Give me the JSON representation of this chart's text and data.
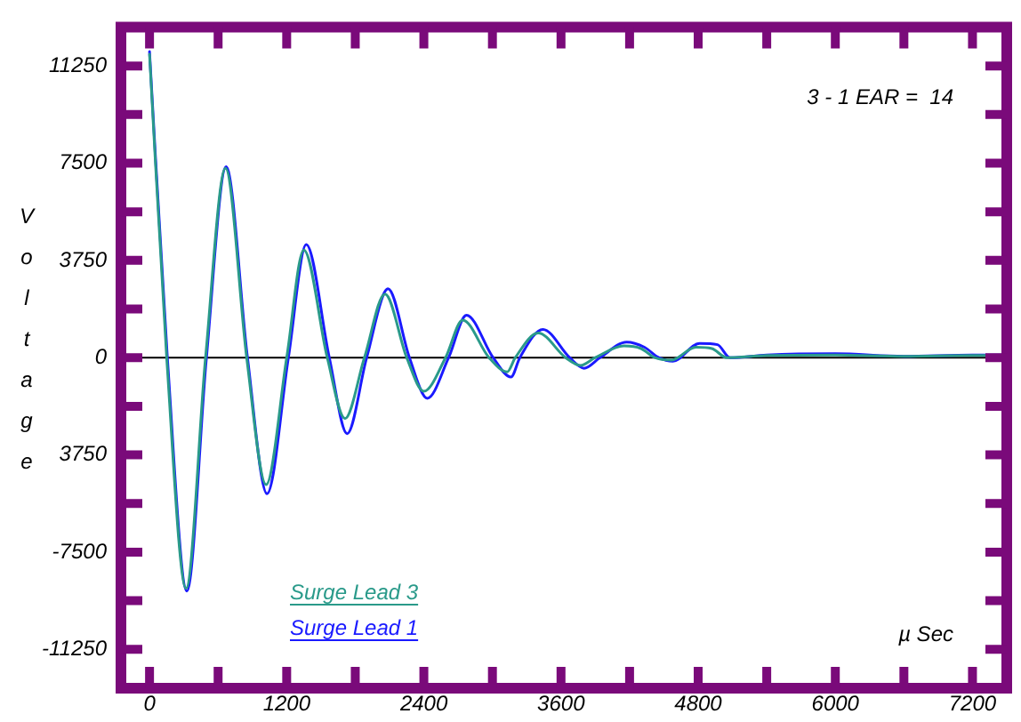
{
  "chart_data": {
    "type": "line",
    "ylabel": "Voltage",
    "annotations": [
      "3 - 1 EAR =  14",
      "µ Sec"
    ],
    "xlim": [
      -250,
      7500
    ],
    "ylim": [
      -12750,
      12750
    ],
    "xticks": [
      0,
      {
        "value": 600,
        "label": null
      },
      1200,
      {
        "value": 1800,
        "label": null
      },
      2400,
      {
        "value": 3000,
        "label": null
      },
      3600,
      {
        "value": 4200,
        "label": null
      },
      4800,
      {
        "value": 5400,
        "label": null
      },
      6000,
      {
        "value": 6600,
        "label": null
      },
      7200
    ],
    "yticks": [
      {
        "value": -11250,
        "label": "-11250"
      },
      {
        "value": -9375,
        "label": null
      },
      {
        "value": -7500,
        "label": "-7500"
      },
      {
        "value": -5625,
        "label": null
      },
      {
        "value": -3750,
        "label": "3750"
      },
      {
        "value": -1875,
        "label": null
      },
      0,
      {
        "value": 1875,
        "label": null
      },
      3750,
      {
        "value": 5625,
        "label": null
      },
      7500,
      {
        "value": 9375,
        "label": null
      },
      11250
    ],
    "ref_lines": [
      {
        "axis": "y",
        "value": 0,
        "color": "#000000"
      }
    ],
    "legend": "bottom left",
    "grid": false,
    "marker": "none",
    "line_style": "solid",
    "series": [
      {
        "name": "Surge Lead 3",
        "color": "#2a9a8a",
        "x": [
          0,
          150,
          320,
          490,
          665,
          850,
          1020,
          1200,
          1350,
          1555,
          1710,
          1880,
          2060,
          2250,
          2400,
          2590,
          2740,
          2970,
          3130,
          3200,
          3400,
          3640,
          3770,
          3900,
          4150,
          4300,
          4420,
          4560,
          4780,
          4920,
          5050,
          5400,
          6000,
          6600,
          7200,
          7500
        ],
        "values": [
          11700,
          0,
          -8900,
          0,
          7300,
          0,
          -4900,
          0,
          4150,
          0,
          -2350,
          0,
          2450,
          0,
          -1300,
          0,
          1450,
          0,
          -550,
          0,
          950,
          0,
          -300,
          0,
          450,
          350,
          0,
          -100,
          400,
          350,
          0,
          80,
          100,
          50,
          80,
          80
        ]
      },
      {
        "name": "Surge Lead 1",
        "color": "#1a1aff",
        "x": [
          0,
          156,
          327,
          498,
          670,
          857,
          1028,
          1215,
          1371,
          1573,
          1729,
          1900,
          2087,
          2274,
          2430,
          2617,
          2773,
          3006,
          3162,
          3240,
          3442,
          3676,
          3801,
          3941,
          4174,
          4330,
          4455,
          4579,
          4813,
          4969,
          5078,
          5400,
          6000,
          6600,
          7200,
          7500
        ],
        "values": [
          11800,
          0,
          -9000,
          0,
          7360,
          0,
          -5250,
          0,
          4360,
          0,
          -2930,
          0,
          2660,
          0,
          -1570,
          0,
          1640,
          0,
          -750,
          0,
          1090,
          0,
          -410,
          0,
          600,
          400,
          0,
          -140,
          550,
          500,
          0,
          100,
          150,
          50,
          100,
          100
        ]
      }
    ]
  }
}
